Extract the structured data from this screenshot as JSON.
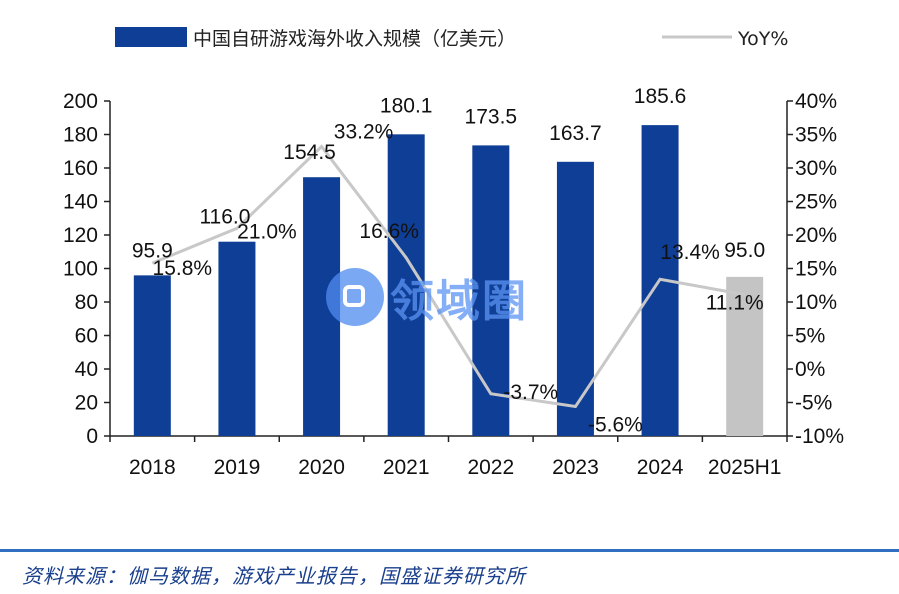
{
  "chart_data": {
    "type": "bar",
    "categories": [
      "2018",
      "2019",
      "2020",
      "2021",
      "2022",
      "2023",
      "2024",
      "2025H1"
    ],
    "series": [
      {
        "name": "中国自研游戏海外收入规模（亿美元）",
        "kind": "bar",
        "axis": "left",
        "values": [
          95.9,
          116.0,
          154.5,
          180.1,
          173.5,
          163.7,
          185.6,
          95.0
        ],
        "value_labels": [
          "95.9",
          "116.0",
          "154.5",
          "180.1",
          "173.5",
          "163.7",
          "185.6",
          "95.0"
        ],
        "color": "#0f3e96",
        "highlight_color": "#c4c4c4",
        "highlight_index": 7
      },
      {
        "name": "YoY%",
        "kind": "line",
        "axis": "right",
        "values": [
          15.8,
          21.0,
          33.2,
          16.6,
          -3.7,
          -5.6,
          13.4,
          11.1
        ],
        "value_labels": [
          "15.8%",
          "21.0%",
          "33.2%",
          "16.6%",
          "-3.7%",
          "-5.6%",
          "13.4%",
          "11.1%"
        ],
        "color": "#c8c8c8"
      }
    ],
    "ylim": [
      0,
      200
    ],
    "yticks": [
      "0",
      "20",
      "40",
      "60",
      "80",
      "100",
      "120",
      "140",
      "160",
      "180",
      "200"
    ],
    "y2lim": [
      -10,
      40
    ],
    "y2ticks": [
      "-10%",
      "-5%",
      "0%",
      "5%",
      "10%",
      "15%",
      "20%",
      "25%",
      "30%",
      "35%",
      "40%"
    ],
    "legend": "top",
    "grid": false
  },
  "watermark": {
    "text": "领域圈"
  },
  "source_note": "资料来源：伽马数据，游戏产业报告，国盛证券研究所"
}
